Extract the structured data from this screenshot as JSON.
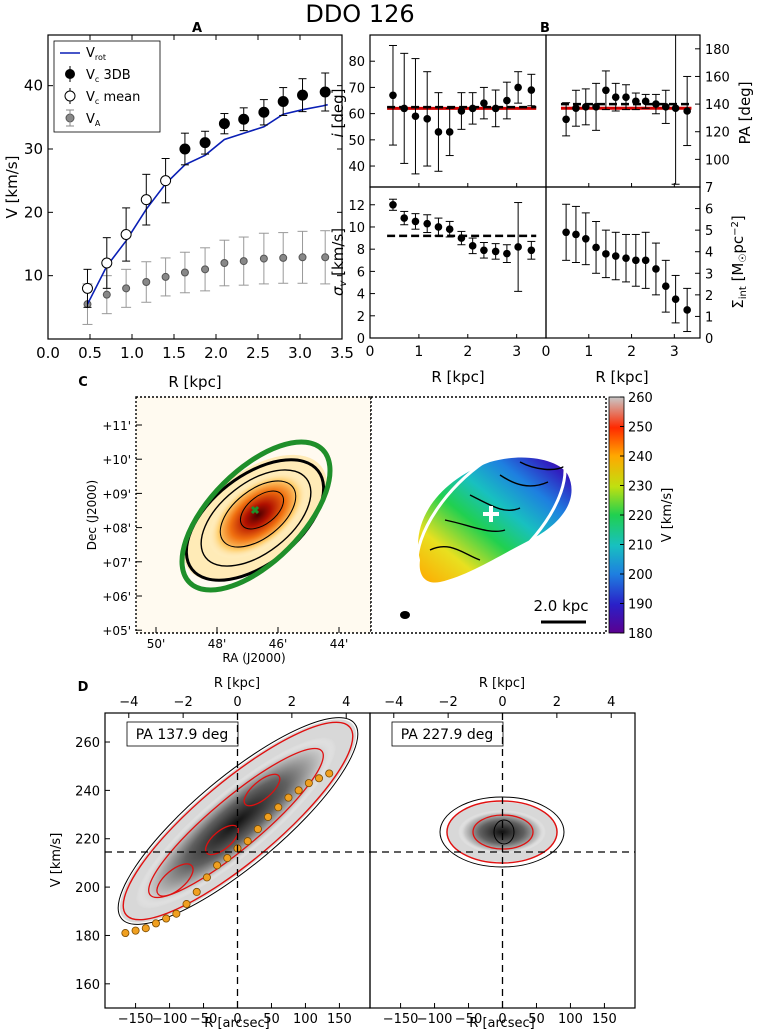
{
  "figure": {
    "title": "DDO 126",
    "panel_letters": [
      "A",
      "B",
      "C",
      "D"
    ]
  },
  "colors": {
    "vrot": "#0a1fb5",
    "sigma_line": "#d10000",
    "ellipse_green": "#1f8f2a",
    "cross_green": "#1f8f2a"
  },
  "chart_data": [
    {
      "id": "A",
      "type": "line",
      "title": "A",
      "xlabel": "R [kpc]",
      "ylabel": "V [km/s]",
      "xlim": [
        0,
        3.5
      ],
      "ylim": [
        0,
        48
      ],
      "xticks": [
        "0.0",
        "0.5",
        "1.0",
        "1.5",
        "2.0",
        "2.5",
        "3.0",
        "3.5"
      ],
      "yticks": [
        "10",
        "20",
        "30",
        "40"
      ],
      "legend": {
        "placement": "top-left",
        "entries": [
          "V_rot",
          "V_c 3DB",
          "V_c mean",
          "V_A"
        ]
      },
      "series": [
        {
          "name": "V_rot",
          "kind": "line",
          "x": [
            0.47,
            0.7,
            0.93,
            1.17,
            1.4,
            1.63,
            1.87,
            2.1,
            2.33,
            2.57,
            2.8,
            3.03,
            3.27,
            3.33
          ],
          "y": [
            5.5,
            11.5,
            15.5,
            20.5,
            24.5,
            27.5,
            29,
            31.5,
            32.5,
            33.5,
            35.5,
            36.2,
            36.8,
            37
          ]
        },
        {
          "name": "V_c 3DB",
          "kind": "points",
          "x": [
            1.63,
            1.87,
            2.1,
            2.33,
            2.57,
            2.8,
            3.03,
            3.3
          ],
          "y": [
            30,
            31,
            34,
            34.7,
            35.8,
            37.5,
            38.5,
            39
          ],
          "err": [
            2.5,
            1.8,
            1.6,
            1.8,
            2.0,
            2.2,
            2.6,
            3.0
          ]
        },
        {
          "name": "V_c mean",
          "kind": "points",
          "x": [
            0.47,
            0.7,
            0.93,
            1.17,
            1.4
          ],
          "y": [
            8,
            12,
            16.5,
            22,
            25
          ],
          "err": [
            3,
            4,
            4.2,
            4.0,
            3.5
          ]
        },
        {
          "name": "V_A",
          "kind": "points",
          "x": [
            0.47,
            0.7,
            0.93,
            1.17,
            1.4,
            1.63,
            1.87,
            2.1,
            2.33,
            2.57,
            2.8,
            3.03,
            3.3
          ],
          "y": [
            5.5,
            7,
            8,
            9,
            9.8,
            10.5,
            11,
            12,
            12.3,
            12.7,
            12.8,
            12.9,
            12.9
          ],
          "err": [
            3.2,
            3.0,
            3.0,
            3.2,
            3.0,
            3.2,
            3.4,
            3.6,
            3.8,
            4.0,
            4.0,
            4.1,
            4.2
          ]
        }
      ]
    },
    {
      "id": "B-i",
      "type": "scatter",
      "title": "B",
      "ylabel": "i [deg]",
      "xlim": [
        0,
        3.6
      ],
      "ylim": [
        32,
        90
      ],
      "yticks": [
        "40",
        "50",
        "60",
        "70",
        "80"
      ],
      "x": [
        0.47,
        0.7,
        0.93,
        1.17,
        1.4,
        1.63,
        1.87,
        2.1,
        2.33,
        2.57,
        2.8,
        3.03,
        3.3
      ],
      "y": [
        67,
        62,
        59,
        58,
        53,
        53,
        61,
        62,
        64,
        62,
        65,
        70,
        69
      ],
      "err": [
        19,
        21,
        22,
        18,
        15,
        9,
        7,
        6,
        6,
        7,
        7,
        6,
        6
      ],
      "red_level": 62,
      "dashed_level": 62.5
    },
    {
      "id": "B-PA",
      "type": "scatter",
      "ylabel": "PA [deg]",
      "xlim": [
        0,
        3.6
      ],
      "ylim": [
        80,
        190
      ],
      "yticks": [
        "100",
        "120",
        "140",
        "160",
        "180"
      ],
      "x": [
        0.47,
        0.7,
        0.93,
        1.17,
        1.4,
        1.63,
        1.87,
        2.1,
        2.33,
        2.57,
        2.8,
        3.03,
        3.3
      ],
      "y": [
        129,
        137,
        138,
        138,
        150,
        145,
        145,
        142,
        142,
        140,
        138,
        137,
        135
      ],
      "err": [
        12,
        13,
        13,
        17,
        14,
        10,
        9,
        6,
        5,
        7,
        12,
        55,
        25
      ],
      "red_level": 137,
      "dashed_level": 140
    },
    {
      "id": "B-sigma",
      "type": "scatter",
      "xlabel": "R [kpc]",
      "ylabel": "σ_v [km/s]",
      "xlim": [
        0,
        3.6
      ],
      "ylim": [
        0,
        13.6
      ],
      "xticks": [
        "0",
        "1",
        "2",
        "3"
      ],
      "yticks": [
        "0",
        "2",
        "4",
        "6",
        "8",
        "10",
        "12"
      ],
      "x": [
        0.47,
        0.7,
        0.93,
        1.17,
        1.4,
        1.63,
        1.87,
        2.1,
        2.33,
        2.57,
        2.8,
        3.03,
        3.3
      ],
      "y": [
        12,
        10.8,
        10.5,
        10.3,
        10,
        9.8,
        9,
        8.3,
        7.9,
        7.8,
        7.6,
        8.2,
        7.9
      ],
      "err": [
        0.5,
        0.6,
        0.7,
        0.8,
        0.8,
        0.7,
        0.6,
        0.7,
        0.7,
        0.7,
        0.8,
        4.0,
        0.8
      ],
      "dashed_level": 9.2
    },
    {
      "id": "B-sigma-int",
      "type": "scatter",
      "xlabel": "R [kpc]",
      "ylabel": "Σ_int [M☉pc⁻²]",
      "xlim": [
        0,
        3.6
      ],
      "ylim": [
        0,
        7
      ],
      "xticks": [
        "0",
        "1",
        "2",
        "3"
      ],
      "yticks": [
        "0",
        "1",
        "2",
        "3",
        "4",
        "5",
        "6",
        "7"
      ],
      "x": [
        0.47,
        0.7,
        0.93,
        1.17,
        1.4,
        1.63,
        1.87,
        2.1,
        2.33,
        2.57,
        2.8,
        3.03,
        3.3
      ],
      "y": [
        4.9,
        4.8,
        4.6,
        4.2,
        3.9,
        3.8,
        3.7,
        3.6,
        3.6,
        3.2,
        2.4,
        1.8,
        1.3
      ],
      "err": [
        1.3,
        1.3,
        1.2,
        1.2,
        1.1,
        1.1,
        1.1,
        1.2,
        1.3,
        1.2,
        1.2,
        1.1,
        1.0
      ]
    },
    {
      "id": "C",
      "type": "heatmap",
      "title": "C",
      "left_map": {
        "xlabel": "RA (J2000)",
        "ylabel": "Dec (J2000)",
        "xticks": [
          "50'",
          "48'",
          "46'",
          "44'"
        ],
        "yticks": [
          "+11'",
          "+10'",
          "+09'",
          "+08'",
          "+07'",
          "+06'",
          "+05'"
        ]
      },
      "right_map": {
        "scale_label": "2.0 kpc",
        "colorbar_label": "V [km/s]",
        "colorbar_range": [
          180,
          260
        ],
        "colorbar_ticks": [
          "260",
          "250",
          "240",
          "230",
          "220",
          "210",
          "200",
          "190",
          "180"
        ]
      }
    },
    {
      "id": "D",
      "type": "heatmap",
      "title": "D",
      "xlabel": "R [arcsec]",
      "xlabel_top": "R [kpc]",
      "ylabel": "V [km/s]",
      "xlim": [
        -195,
        195
      ],
      "ylim": [
        150,
        272
      ],
      "xticks": [
        "−150",
        "−100",
        "−50",
        "0",
        "50",
        "100",
        "150"
      ],
      "xticks_top": [
        "−4",
        "−2",
        "0",
        "2",
        "4"
      ],
      "yticks": [
        "160",
        "180",
        "200",
        "220",
        "240",
        "260"
      ],
      "systemic_velocity": 214.5,
      "left": {
        "label": "PA 137.9 deg",
        "rotation_curve": {
          "x": [
            -165,
            -150,
            -135,
            -120,
            -105,
            -90,
            -75,
            -60,
            -45,
            -30,
            -15,
            0,
            15,
            30,
            45,
            60,
            75,
            90,
            105,
            120,
            135
          ],
          "y": [
            181,
            182,
            183,
            185,
            187,
            189,
            193,
            198,
            204,
            209,
            212,
            216,
            219,
            224,
            229,
            233,
            237,
            240,
            243,
            245,
            247
          ]
        }
      },
      "right": {
        "label": "PA 227.9 deg"
      }
    }
  ]
}
